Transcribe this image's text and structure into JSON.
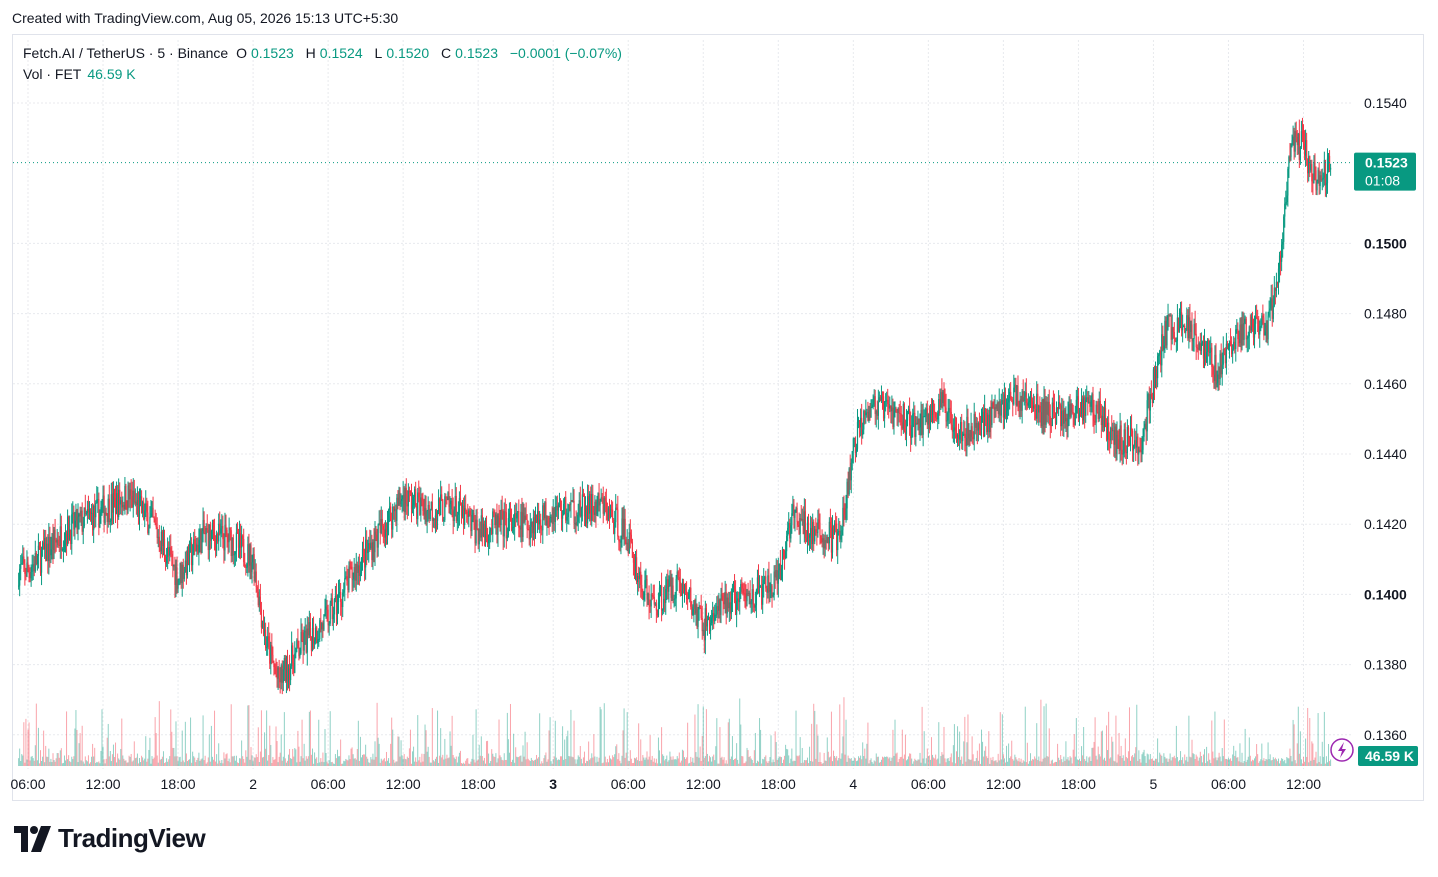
{
  "header": {
    "created_with": "Created with TradingView.com, Aug 05, 2026 15:13 UTC+5:30"
  },
  "legend": {
    "symbol": "Fetch.AI / TetherUS · 5 · Binance",
    "open_label": "O",
    "open": "0.1523",
    "high_label": "H",
    "high": "0.1524",
    "low_label": "L",
    "low": "0.1520",
    "close_label": "C",
    "close": "0.1523",
    "change": "−0.0001 (−0.07%)",
    "volume_label": "Vol · FET",
    "volume": "46.59 K"
  },
  "price_badge": {
    "price": "0.1523",
    "countdown": "01:08"
  },
  "volume_badge": "46.59 K",
  "brand": "TradingView",
  "colors": {
    "up": "#089981",
    "down": "#f23645",
    "badge": "#089981",
    "grid": "#e8eaee"
  },
  "icons": {
    "brand": "tradingview-logo-icon",
    "indicator": "lightning-icon"
  },
  "chart_data": {
    "type": "candlestick",
    "y_ticks": [
      "0.1540",
      "0.1500",
      "0.1480",
      "0.1460",
      "0.1440",
      "0.1420",
      "0.1400",
      "0.1380",
      "0.1360"
    ],
    "y_ticks_bold": [
      "0.1500",
      "0.1400"
    ],
    "x_ticks": [
      "06:00",
      "12:00",
      "18:00",
      "2",
      "06:00",
      "12:00",
      "18:00",
      "3",
      "06:00",
      "12:00",
      "18:00",
      "4",
      "06:00",
      "12:00",
      "18:00",
      "5",
      "06:00",
      "12:00"
    ],
    "x_ticks_bold": [
      "3"
    ],
    "ylim": [
      0.1352,
      0.155
    ],
    "current_price": 0.1523,
    "series": [
      {
        "t": "Aug 1 06:00",
        "close": 0.1407
      },
      {
        "t": "Aug 1 09:00",
        "close": 0.1418
      },
      {
        "t": "Aug 1 12:00",
        "close": 0.1424
      },
      {
        "t": "Aug 1 14:00",
        "close": 0.1428
      },
      {
        "t": "Aug 1 16:00",
        "close": 0.142
      },
      {
        "t": "Aug 1 18:00",
        "close": 0.1405
      },
      {
        "t": "Aug 1 20:00",
        "close": 0.1417
      },
      {
        "t": "Aug 1 22:00",
        "close": 0.1416
      },
      {
        "t": "Aug 2 00:00",
        "close": 0.141
      },
      {
        "t": "Aug 2 01:00",
        "close": 0.1387
      },
      {
        "t": "Aug 2 02:00",
        "close": 0.1375
      },
      {
        "t": "Aug 2 04:00",
        "close": 0.1386
      },
      {
        "t": "Aug 2 06:00",
        "close": 0.1393
      },
      {
        "t": "Aug 2 08:00",
        "close": 0.1406
      },
      {
        "t": "Aug 2 10:00",
        "close": 0.1417
      },
      {
        "t": "Aug 2 12:00",
        "close": 0.1428
      },
      {
        "t": "Aug 2 14:00",
        "close": 0.1424
      },
      {
        "t": "Aug 2 16:00",
        "close": 0.1425
      },
      {
        "t": "Aug 2 18:00",
        "close": 0.1418
      },
      {
        "t": "Aug 2 20:00",
        "close": 0.142
      },
      {
        "t": "Aug 2 22:00",
        "close": 0.142
      },
      {
        "t": "Aug 3 00:00",
        "close": 0.1424
      },
      {
        "t": "Aug 3 02:00",
        "close": 0.1424
      },
      {
        "t": "Aug 3 04:00",
        "close": 0.1425
      },
      {
        "t": "Aug 3 06:00",
        "close": 0.1416
      },
      {
        "t": "Aug 3 07:00",
        "close": 0.1403
      },
      {
        "t": "Aug 3 08:00",
        "close": 0.1397
      },
      {
        "t": "Aug 3 10:00",
        "close": 0.1404
      },
      {
        "t": "Aug 3 12:00",
        "close": 0.1391
      },
      {
        "t": "Aug 3 14:00",
        "close": 0.1398
      },
      {
        "t": "Aug 3 16:00",
        "close": 0.14
      },
      {
        "t": "Aug 3 18:00",
        "close": 0.1403
      },
      {
        "t": "Aug 3 19:00",
        "close": 0.1422
      },
      {
        "t": "Aug 3 21:00",
        "close": 0.1417
      },
      {
        "t": "Aug 3 23:00",
        "close": 0.1416
      },
      {
        "t": "Aug 4 00:00",
        "close": 0.1441
      },
      {
        "t": "Aug 4 01:00",
        "close": 0.1454
      },
      {
        "t": "Aug 4 03:00",
        "close": 0.1452
      },
      {
        "t": "Aug 4 05:00",
        "close": 0.1448
      },
      {
        "t": "Aug 4 07:00",
        "close": 0.1454
      },
      {
        "t": "Aug 4 09:00",
        "close": 0.1446
      },
      {
        "t": "Aug 4 11:00",
        "close": 0.1451
      },
      {
        "t": "Aug 4 13:00",
        "close": 0.1457
      },
      {
        "t": "Aug 4 15:00",
        "close": 0.1452
      },
      {
        "t": "Aug 4 17:00",
        "close": 0.1451
      },
      {
        "t": "Aug 4 19:00",
        "close": 0.1455
      },
      {
        "t": "Aug 4 21:00",
        "close": 0.1444
      },
      {
        "t": "Aug 4 23:00",
        "close": 0.1443
      },
      {
        "t": "Aug 5 00:00",
        "close": 0.146
      },
      {
        "t": "Aug 5 01:00",
        "close": 0.1475
      },
      {
        "t": "Aug 5 03:00",
        "close": 0.1477
      },
      {
        "t": "Aug 5 05:00",
        "close": 0.1464
      },
      {
        "t": "Aug 5 07:00",
        "close": 0.1475
      },
      {
        "t": "Aug 5 09:00",
        "close": 0.1475
      },
      {
        "t": "Aug 5 10:00",
        "close": 0.1491
      },
      {
        "t": "Aug 5 11:00",
        "close": 0.1528
      },
      {
        "t": "Aug 5 12:00",
        "close": 0.1528
      },
      {
        "t": "Aug 5 13:00",
        "close": 0.1517
      },
      {
        "t": "Aug 5 14:10",
        "close": 0.1523
      }
    ]
  }
}
